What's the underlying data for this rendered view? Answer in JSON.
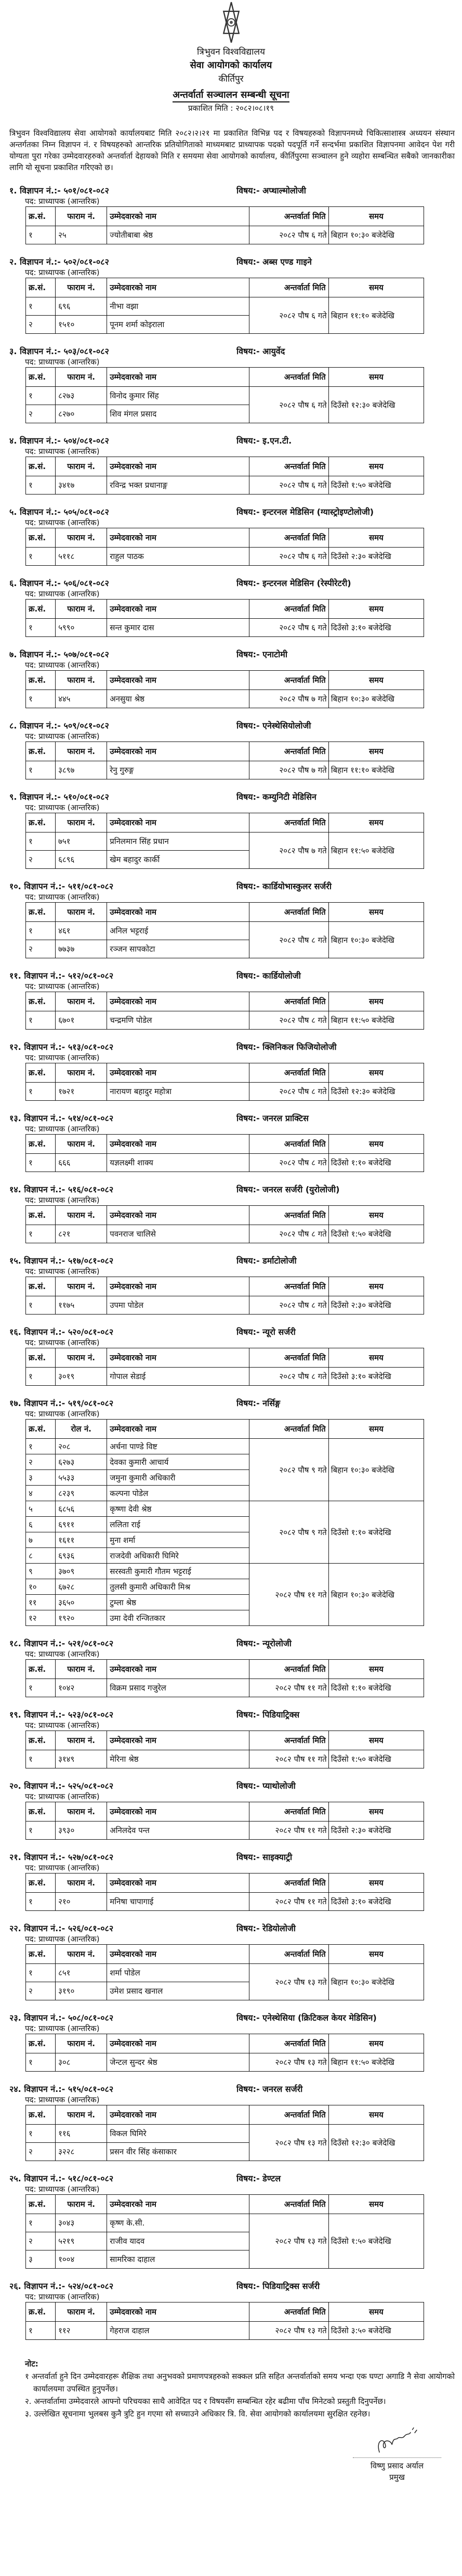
{
  "header": {
    "university": "त्रिभुवन विश्वविद्यालय",
    "office": "सेवा आयोगको कार्यालय",
    "place": "कीर्तिपुर",
    "title": "अन्तर्वार्ता सञ्चालन सम्बन्धी सूचना",
    "published": "प्रकाशित मिति : २०८२।०८।१९"
  },
  "intro": "त्रिभुवन विश्वविद्यालय सेवा आयोगको कार्यालयबाट मिति २०८२।२।२१ मा प्रकाशित विभिन्न पद र विषयहरुको विज्ञापनमध्ये चिकित्साशास्त्र अध्ययन संस्थान अन्तर्गतका निम्न विज्ञापन नं. र विषयहरुको आन्तरिक प्रतियोगिताको माध्यमबाट प्राध्यापक पदको पदपूर्ति गर्ने सन्दर्भमा प्रकाशित विज्ञापनमा आवेदन पेश गरी योग्यता पुरा गरेका उम्मेदवारहरुको अन्तर्वार्ता देहायको मिति र समयमा सेवा आयोगको कार्यालय, कीर्तिपुरमा सञ्चालन हुने व्यहोरा सम्बन्धित सबैको जानकारीका लागि यो सूचना प्रकाशित गरिएको छ।",
  "columns": [
    "क्र.सं.",
    "फाराम नं.",
    "उम्मेदवारको नाम",
    "अन्तर्वार्ता मिति",
    "समय"
  ],
  "columns_roll": [
    "क्र.सं.",
    "रोल नं.",
    "उम्मेदवारको नाम",
    "अन्तर्वार्ता मिति",
    "समय"
  ],
  "sections": [
    {
      "adv": "१. विज्ञापन नं.:- ५०१/०८१-०८२",
      "subject": "विषय:- अप्थाल्मोलोजी",
      "post": "पद: प्राध्यापक (आन्तरिक)",
      "rows": [
        [
          "१",
          "२५",
          "ज्योतीबाबा श्रेष्ठ"
        ]
      ],
      "slots": [
        {
          "span": 1,
          "date": "२०८२ पौष ६ गते",
          "time": "बिहान १०:३० बजेदेखि"
        }
      ]
    },
    {
      "adv": "२. विज्ञापन नं.:- ५०२/०८१-०८२",
      "subject": "विषय:- अब्स एण्ड गाइने",
      "post": "पद: प्राध्यापक (आन्तरिक)",
      "rows": [
        [
          "१",
          "६९६",
          "नीभा वझा"
        ],
        [
          "२",
          "१५१०",
          "पूनम शर्मा कोइराला"
        ]
      ],
      "slots": [
        {
          "span": 2,
          "date": "२०८२ पौष ६ गते",
          "time": "बिहान ११:१० बजेदेखि"
        }
      ]
    },
    {
      "adv": "३. विज्ञापन नं.:- ५०३/०८१-०८२",
      "subject": "विषय:- आयुर्वेद",
      "post": "पद: प्राध्यापक (आन्तरिक)",
      "rows": [
        [
          "१",
          "८२७३",
          "विनोद कुमार सिंह"
        ],
        [
          "२",
          "८२७०",
          "शिव मंगल प्रसाद"
        ]
      ],
      "slots": [
        {
          "span": 2,
          "date": "२०८२ पौष ६ गते",
          "time": "दिउँसो १२:३० बजेदेखि"
        }
      ]
    },
    {
      "adv": "४. विज्ञापन नं.:- ५०४/०८१-०८२",
      "subject": "विषय:- इ.एन.टी.",
      "post": "पद: प्राध्यापक (आन्तरिक)",
      "rows": [
        [
          "१",
          "३४१७",
          "रविन्द्र भक्त प्रधानाङ्ग"
        ]
      ],
      "slots": [
        {
          "span": 1,
          "date": "२०८२ पौष ६ गते",
          "time": "दिउँसो १:५० बजेदेखि"
        }
      ]
    },
    {
      "adv": "५. विज्ञापन नं.:- ५०५/०८१-०८२",
      "subject": "विषय:- इन्टरनल मेडिसिन (ग्यास्ट्रोइण्टोलोजी)",
      "post": "पद: प्राध्यापक (आन्तरिक)",
      "rows": [
        [
          "१",
          "५११८",
          "राहुल पाठक"
        ]
      ],
      "slots": [
        {
          "span": 1,
          "date": "२०८२ पौष ६ गते",
          "time": "दिउँसो २:३० बजेदेखि"
        }
      ]
    },
    {
      "adv": "६. विज्ञापन नं.:- ५०६/०८१-०८२",
      "subject": "विषय:- इन्टरनल मेडिसिन (रेस्पीरेटरी)",
      "post": "पद: प्राध्यापक (आन्तरिक)",
      "rows": [
        [
          "१",
          "५९९०",
          "सन्त कुमार दास"
        ]
      ],
      "slots": [
        {
          "span": 1,
          "date": "२०८२ पौष ६ गते",
          "time": "दिउँसो ३:१० बजेदेखि"
        }
      ]
    },
    {
      "adv": "७. विज्ञापन नं.:- ५०७/०८१-०८२",
      "subject": "विषय:- एनाटोमी",
      "post": "पद: प्राध्यापक (आन्तरिक)",
      "rows": [
        [
          "१",
          "४४५",
          "अनसुया श्रेष्ठ"
        ]
      ],
      "slots": [
        {
          "span": 1,
          "date": "२०८२ पौष ७ गते",
          "time": "बिहान १०:३० बजेदेखि"
        }
      ]
    },
    {
      "adv": "८. विज्ञापन नं.:- ५०९/०८१-०८२",
      "subject": "विषय:- एनेस्थेसियोलोजी",
      "post": "पद: प्राध्यापक (आन्तरिक)",
      "rows": [
        [
          "१",
          "३८९७",
          "रेनु गुरुङ्ग"
        ]
      ],
      "slots": [
        {
          "span": 1,
          "date": "२०८२ पौष ७ गते",
          "time": "बिहान ११:१० बजेदेखि"
        }
      ]
    },
    {
      "adv": "९. विज्ञापन नं.:- ५१०/०८१-०८२",
      "subject": "विषय:- कम्युनिटी मेडिसिन",
      "post": "पद: प्राध्यापक (आन्तरिक)",
      "rows": [
        [
          "१",
          "७५१",
          "प्रनिलमान सिंह प्रधान"
        ],
        [
          "२",
          "६८९६",
          "खेम बहादुर कार्की"
        ]
      ],
      "slots": [
        {
          "span": 2,
          "date": "२०८२ पौष ७ गते",
          "time": "बिहान ११:५० बजेदेखि"
        }
      ]
    },
    {
      "adv": "१०. विज्ञापन नं.:- ५११/०८१-०८२",
      "subject": "विषय:- कार्डियोभास्कुलर सर्जरी",
      "post": "पद: प्राध्यापक (आन्तरिक)",
      "rows": [
        [
          "१",
          "४६१",
          "अनिल भट्टराई"
        ],
        [
          "२",
          "७७३७",
          "रञ्जन सापकोटा"
        ]
      ],
      "slots": [
        {
          "span": 2,
          "date": "२०८२ पौष ८ गते",
          "time": "बिहान १०:३० बजेदेखि"
        }
      ]
    },
    {
      "adv": "११. विज्ञापन नं.:- ५१२/०८१-०८२",
      "subject": "विषय:- कार्डियोलोजी",
      "post": "पद: प्राध्यापक (आन्तरिक)",
      "rows": [
        [
          "१",
          "६७०१",
          "चन्द्रमणि पोडेल"
        ]
      ],
      "slots": [
        {
          "span": 1,
          "date": "२०८२ पौष ८ गते",
          "time": "बिहान ११:५० बजेदेखि"
        }
      ]
    },
    {
      "adv": "१२. विज्ञापन नं.:- ५१३/०८१-०८२",
      "subject": "विषय:- क्लिनिकल फिजियोलोजी",
      "post": "पद: प्राध्यापक (आन्तरिक)",
      "rows": [
        [
          "१",
          "१७२१",
          "नारायण बहादुर महोत्रा"
        ]
      ],
      "slots": [
        {
          "span": 1,
          "date": "२०८२ पौष ८ गते",
          "time": "दिउँसो १२:३० बजेदेखि"
        }
      ]
    },
    {
      "adv": "१३. विज्ञापन नं.:- ५१४/०८१-०८२",
      "subject": "विषय:- जनरल प्राक्टिस",
      "post": "पद: प्राध्यापक (आन्तरिक)",
      "rows": [
        [
          "१",
          "६६६",
          "यज्ञलक्ष्मी शाक्य"
        ]
      ],
      "slots": [
        {
          "span": 1,
          "date": "२०८२ पौष ८ गते",
          "time": "दिउँसो १:१० बजेदेखि"
        }
      ]
    },
    {
      "adv": "१४. विज्ञापन नं.:- ५१६/०८१-०८२",
      "subject": "विषय:- जनरल सर्जरी (युरोलोजी)",
      "post": "पद: प्राध्यापक (आन्तरिक)",
      "rows": [
        [
          "१",
          "८२१",
          "पवनराज चालिसे"
        ]
      ],
      "slots": [
        {
          "span": 1,
          "date": "२०८२ पौष ८ गते",
          "time": "दिउँसो १:५० बजेदेखि"
        }
      ]
    },
    {
      "adv": "१५. विज्ञापन नं.:- ५१७/०८१-०८२",
      "subject": "विषय:- डर्माटोलोजी",
      "post": "पद: प्राध्यापक (आन्तरिक)",
      "rows": [
        [
          "१",
          "११७५",
          "उपमा पोडेल"
        ]
      ],
      "slots": [
        {
          "span": 1,
          "date": "२०८२ पौष ८ गते",
          "time": "दिउँसो २:३० बजेदेखि"
        }
      ]
    },
    {
      "adv": "१६. विज्ञापन नं.:- ५२०/०८१-०८२",
      "subject": "विषय:- न्यूरो सर्जरी",
      "post": "पद: प्राध्यापक (आन्तरिक)",
      "rows": [
        [
          "१",
          "३०१९",
          "गोपाल सेडाई"
        ]
      ],
      "slots": [
        {
          "span": 1,
          "date": "२०८२ पौष ८ गते",
          "time": "दिउँसो ३:१० बजेदेखि"
        }
      ]
    },
    {
      "adv": "१७. विज्ञापन नं.:- ५१९/०८१-०८२",
      "subject": "विषय:- नर्सिङ्ग",
      "post": "पद: प्राध्यापक (आन्तरिक)",
      "roll": true,
      "rows": [
        [
          "१",
          "२०८",
          "अर्चना पाण्डे विष्ट"
        ],
        [
          "२",
          "६२७३",
          "देवका कुमारी आचार्य"
        ],
        [
          "३",
          "५५३३",
          "जमुना कुमारी अधिकारी"
        ],
        [
          "४",
          "८२३९",
          "कल्पना पोडेल"
        ],
        [
          "५",
          "६८५६",
          "कृष्णा देवी श्रेष्ठ"
        ],
        [
          "६",
          "६९११",
          "ललिता राई"
        ],
        [
          "७",
          "१६११",
          "मुना शर्मा"
        ],
        [
          "८",
          "६९३६",
          "राजदेवी अधिकारी घिमिरे"
        ],
        [
          "९",
          "३७०९",
          "सरस्वती कुमारी गौतम भट्टराई"
        ],
        [
          "१०",
          "६७२८",
          "तुलसी कुमारी अधिकारी मिश्र"
        ],
        [
          "११",
          "३६५०",
          "टुम्ला श्रेष्ठ"
        ],
        [
          "१२",
          "१९२०",
          "उमा देवी रन्जितकार"
        ]
      ],
      "slots": [
        {
          "span": 4,
          "date": "२०८२ पौष ९ गते",
          "time": "बिहान १०:३० बजेदेखि"
        },
        {
          "span": 4,
          "date": "२०८२ पौष ९ गते",
          "time": "दिउँसो १:१० बजेदेखि"
        },
        {
          "span": 4,
          "date": "२०८२ पौष ११ गते",
          "time": "बिहान १०:३० बजेदेखि"
        }
      ]
    },
    {
      "adv": "१८. विज्ञापन नं.:- ५२१/०८१-०८२",
      "subject": "विषय:- न्यूरोलोजी",
      "post": "पद: प्राध्यापक (आन्तरिक)",
      "rows": [
        [
          "१",
          "१०४२",
          "विक्रम प्रसाद गजुरेल"
        ]
      ],
      "slots": [
        {
          "span": 1,
          "date": "२०८२ पौष ११ गते",
          "time": "दिउँसो १:१० बजेदेखि"
        }
      ]
    },
    {
      "adv": "१९. विज्ञापन नं.:- ५२३/०८१-०८२",
      "subject": "विषय:- पिडियाट्रिक्स",
      "post": "पद: प्राध्यापक (आन्तरिक)",
      "rows": [
        [
          "१",
          "३१४९",
          "मेरिना श्रेष्ठ"
        ]
      ],
      "slots": [
        {
          "span": 1,
          "date": "२०८२ पौष ११ गते",
          "time": "दिउँसो १:५० बजेदेखि"
        }
      ]
    },
    {
      "adv": "२०. विज्ञापन नं.:- ५२५/०८१-०८२",
      "subject": "विषय:- प्याथोलोजी",
      "post": "पद: प्राध्यापक (आन्तरिक)",
      "rows": [
        [
          "१",
          "३९३०",
          "अनिलदेव पन्त"
        ]
      ],
      "slots": [
        {
          "span": 1,
          "date": "२०८२ पौष ११ गते",
          "time": "दिउँसो २:३० बजेदेखि"
        }
      ]
    },
    {
      "adv": "२१. विज्ञापन नं.:- ५२७/०८१-०८२",
      "subject": "विषय:- साइक्याट्री",
      "post": "पद: प्राध्यापक (आन्तरिक)",
      "rows": [
        [
          "१",
          "२१०",
          "मनिषा चापागाई"
        ]
      ],
      "slots": [
        {
          "span": 1,
          "date": "२०८२ पौष ११ गते",
          "time": "दिउँसो ३:१० बजेदेखि"
        }
      ]
    },
    {
      "adv": "२२. विज्ञापन नं.:- ५२६/०८१-०८२",
      "subject": "विषय:- रेडियोलोजी",
      "post": "पद: प्राध्यापक (आन्तरिक)",
      "rows": [
        [
          "१",
          "८५१",
          "शर्मा पोडेल"
        ],
        [
          "२",
          "३१९०",
          "उमेश प्रसाद खनाल"
        ]
      ],
      "slots": [
        {
          "span": 2,
          "date": "२०८२ पौष १३ गते",
          "time": "बिहान १०:३० बजेदेखि"
        }
      ]
    },
    {
      "adv": "२३. विज्ञापन नं.:- ५०८/०८१-०८२",
      "subject": "विषय:- एनेस्थेसिया (क्रिटिकल केयर मेडिसिन)",
      "post": "पद: प्राध्यापक (आन्तरिक)",
      "rows": [
        [
          "१",
          "३०८",
          "जेन्टल सुन्दर श्रेष्ठ"
        ]
      ],
      "slots": [
        {
          "span": 1,
          "date": "२०८२ पौष १३ गते",
          "time": "बिहान ११:५० बजेदेखि"
        }
      ]
    },
    {
      "adv": "२४. विज्ञापन नं.:- ५१५/०८१-०८२",
      "subject": "विषय:- जनरल सर्जरी",
      "post": "पद: प्राध्यापक (आन्तरिक)",
      "rows": [
        [
          "१",
          "११६",
          "विकल घिमिरे"
        ],
        [
          "२",
          "३२२८",
          "प्रसन वीर सिंह कंसाकार"
        ]
      ],
      "slots": [
        {
          "span": 2,
          "date": "२०८२ पौष १३ गते",
          "time": "दिउँसो १२:३० बजेदेखि"
        }
      ]
    },
    {
      "adv": "२५. विज्ञापन नं.:- ५१८/०८१-०८२",
      "subject": "विषय:- डेण्टल",
      "post": "पद: प्राध्यापक (आन्तरिक)",
      "rows": [
        [
          "१",
          "३०४३",
          "कृष्ण के.सी."
        ],
        [
          "२",
          "५२१९",
          "राजीव यादव"
        ],
        [
          "३",
          "१००४",
          "सामरिका दाहाल"
        ]
      ],
      "slots": [
        {
          "span": 3,
          "date": "२०८२ पौष १३ गते",
          "time": "दिउँसो १:५० बजेदेखि"
        }
      ]
    },
    {
      "adv": "२६. विज्ञापन नं.:- ५२४/०८१-०८२",
      "subject": "विषय:- पिडियाट्रिक्स सर्जरी",
      "post": "पद: प्राध्यापक (आन्तरिक)",
      "rows": [
        [
          "१",
          "११२",
          "गेहराज दाहाल"
        ]
      ],
      "slots": [
        {
          "span": 1,
          "date": "२०८२ पौष १३ गते",
          "time": "दिउँसो ३:५० बजेदेखि"
        }
      ]
    }
  ],
  "notes": {
    "title": "नोट:",
    "items": [
      "१ अन्तर्वार्ता हुने दिन उम्मेदवारहरू शैक्षिक तथा अनुभवको प्रमाणपत्रहरुको सक्कल प्रति सहित अन्तर्वार्ताको समय भन्दा एक घण्टा अगाडि नै सेवा आयोगको कार्यालयमा उपस्थित हुनुपर्नेछ।",
      "२. अन्तर्वार्तामा उम्मेदवारले आफ्नो परिचयका साथै आवेदित पद र विषयसँग सम्बन्धित रहेर बढीमा पाँच मिनेटको प्रस्तुती दिनुपर्नेछ।",
      "३. उल्लेखित सूचनामा भुलबस कुनै त्रुटि हुन गएमा सो सच्याउने अधिकार त्रि. वि. सेवा आयोगको कार्यालयमा सुरक्षित रहनेछ।"
    ]
  },
  "signatory": {
    "name": "विष्णु प्रसाद अर्याल",
    "designation": "प्रमुख"
  }
}
